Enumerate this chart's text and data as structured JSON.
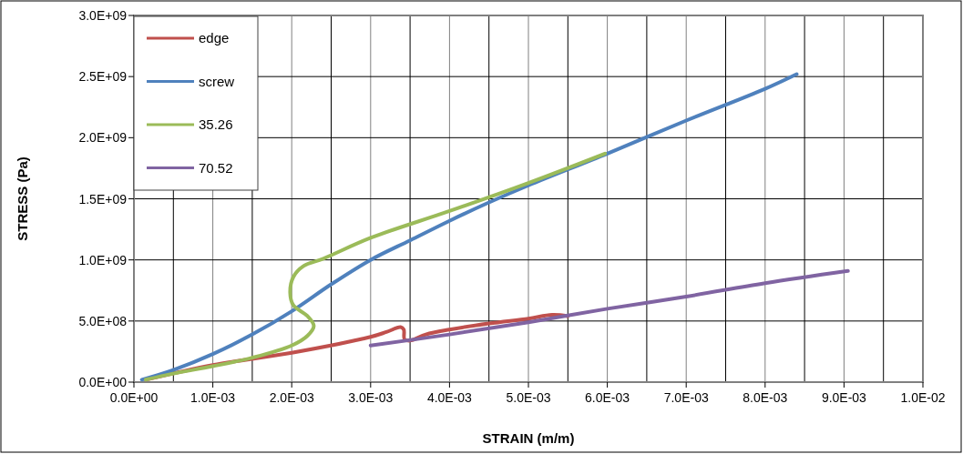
{
  "chart_data": {
    "type": "line",
    "xlabel": "STRAIN (m/m)",
    "ylabel": "STRESS (Pa)",
    "xlim": [
      0,
      0.01
    ],
    "ylim": [
      0,
      3000000000.0
    ],
    "xticks": [
      {
        "value": 0,
        "label": "0.0E+00"
      },
      {
        "value": 0.0005,
        "label": null
      },
      {
        "value": 0.001,
        "label": "1.0E-03"
      },
      {
        "value": 0.0015,
        "label": null
      },
      {
        "value": 0.002,
        "label": "2.0E-03"
      },
      {
        "value": 0.0025,
        "label": null
      },
      {
        "value": 0.003,
        "label": "3.0E-03"
      },
      {
        "value": 0.0035,
        "label": null
      },
      {
        "value": 0.004,
        "label": "4.0E-03"
      },
      {
        "value": 0.0045,
        "label": null
      },
      {
        "value": 0.005,
        "label": "5.0E-03"
      },
      {
        "value": 0.0055,
        "label": null
      },
      {
        "value": 0.006,
        "label": "6.0E-03"
      },
      {
        "value": 0.0065,
        "label": null
      },
      {
        "value": 0.007,
        "label": "7.0E-03"
      },
      {
        "value": 0.0075,
        "label": null
      },
      {
        "value": 0.008,
        "label": "8.0E-03"
      },
      {
        "value": 0.0085,
        "label": null
      },
      {
        "value": 0.009,
        "label": "9.0E-03"
      },
      {
        "value": 0.0095,
        "label": null
      },
      {
        "value": 0.01,
        "label": "1.0E-02"
      }
    ],
    "yticks": [
      {
        "value": 0,
        "label": "0.0E+00"
      },
      {
        "value": 500000000.0,
        "label": "5.0E+08"
      },
      {
        "value": 1000000000.0,
        "label": "1.0E+09"
      },
      {
        "value": 1500000000.0,
        "label": "1.5E+09"
      },
      {
        "value": 2000000000.0,
        "label": "2.0E+09"
      },
      {
        "value": 2500000000.0,
        "label": "2.5E+09"
      },
      {
        "value": 3000000000.0,
        "label": "3.0E+09"
      }
    ],
    "grid": true,
    "legend": "top left",
    "line_style": "solid",
    "series": [
      {
        "name": "edge",
        "color": "#c0504d",
        "x": [
          0.00015,
          0.001,
          0.002,
          0.003,
          0.0032,
          0.00338,
          0.00342,
          0.00343,
          0.0035,
          0.0037,
          0.004,
          0.0045,
          0.005,
          0.0053,
          0.0055
        ],
        "values": [
          20000000.0,
          140000000.0,
          240000000.0,
          370000000.0,
          410000000.0,
          450000000.0,
          430000000.0,
          350000000.0,
          340000000.0,
          390000000.0,
          430000000.0,
          480000000.0,
          520000000.0,
          550000000.0,
          540000000.0
        ]
      },
      {
        "name": "screw",
        "color": "#4f81bd",
        "x": [
          0.0001,
          0.0005,
          0.001,
          0.0015,
          0.002,
          0.0025,
          0.003,
          0.0035,
          0.004,
          0.0045,
          0.005,
          0.006,
          0.007,
          0.008,
          0.0084
        ],
        "values": [
          20000000.0,
          100000000.0,
          230000000.0,
          390000000.0,
          580000000.0,
          800000000.0,
          1000000000.0,
          1160000000.0,
          1320000000.0,
          1470000000.0,
          1610000000.0,
          1870000000.0,
          2140000000.0,
          2400000000.0,
          2520000000.0
        ]
      },
      {
        "name": "35.26",
        "color": "#9bbb59",
        "x": [
          0.00015,
          0.0005,
          0.001,
          0.0015,
          0.002,
          0.0022,
          0.00228,
          0.0022,
          0.00202,
          0.00198,
          0.00202,
          0.00215,
          0.0024,
          0.003,
          0.004,
          0.005,
          0.00597
        ],
        "values": [
          20000000.0,
          70000000.0,
          130000000.0,
          200000000.0,
          300000000.0,
          380000000.0,
          460000000.0,
          540000000.0,
          630000000.0,
          730000000.0,
          860000000.0,
          950000000.0,
          1010000000.0,
          1180000000.0,
          1400000000.0,
          1630000000.0,
          1870000000.0
        ]
      },
      {
        "name": "70.52",
        "color": "#8064a2",
        "x": [
          0.003,
          0.004,
          0.005,
          0.006,
          0.007,
          0.008,
          0.00905
        ],
        "values": [
          300000000.0,
          390000000.0,
          490000000.0,
          600000000.0,
          700000000.0,
          810000000.0,
          910000000.0
        ]
      }
    ]
  }
}
